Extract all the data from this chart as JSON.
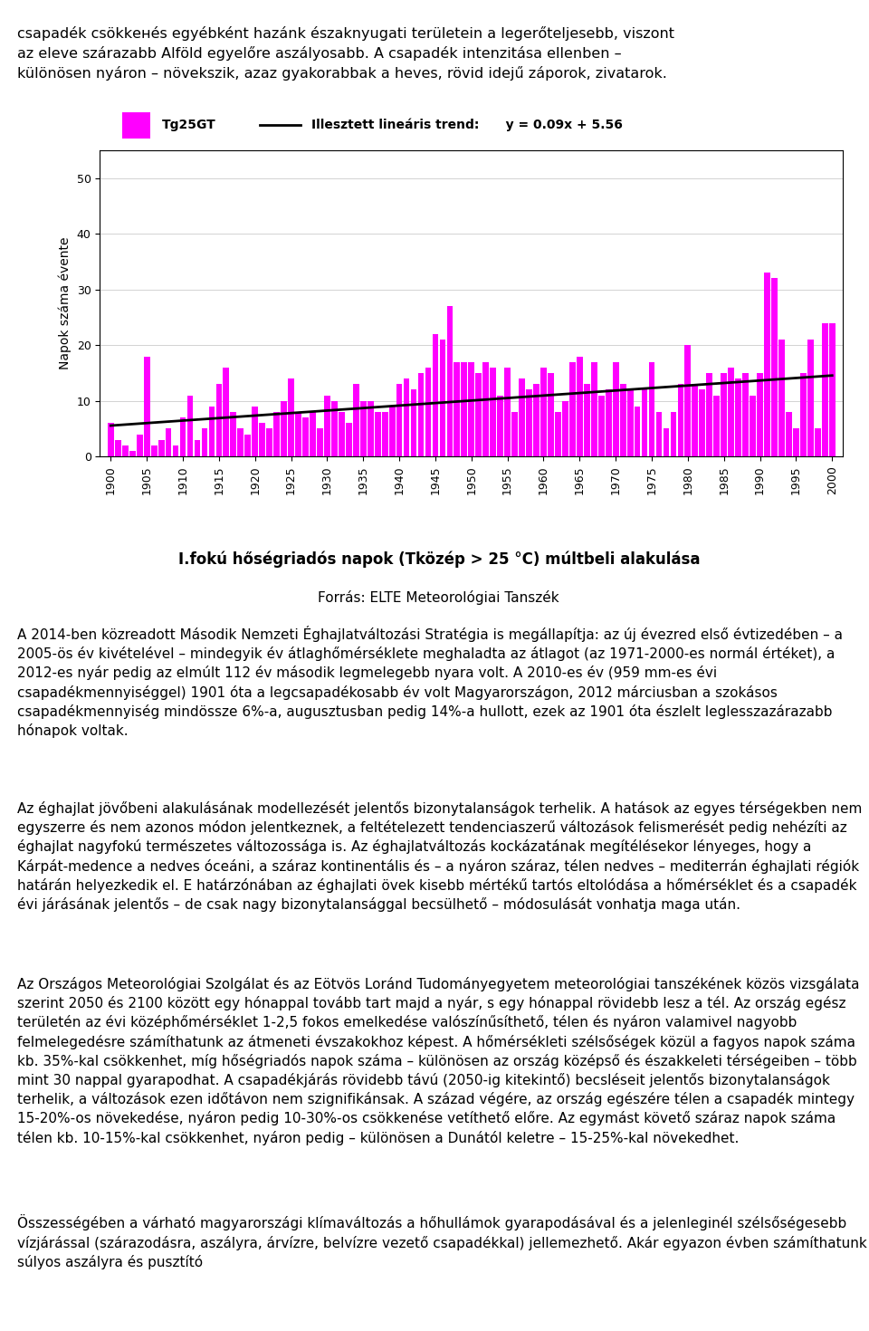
{
  "top_text_line1": "csapadék csökkенés egyébként hazánk északnyugati területein a legerőteljesebb, viszont",
  "top_text_line2": "az eleve szárazabb Alföld egyelőre aszályosabb. A csapadék intenzitása ellenben –",
  "top_text_line3": "különösen nyáron – növekszik, azaz gyakorabbak a heves, rövid idejű záporok, zivatarok.",
  "chart_title": "I.fokú hőségriadós napok (Tközép > 25 °C) múltbeli alakulása",
  "source_text": "Forrás: ELTE Meteorológiai Tanszék",
  "ylabel": "Napok száma évente",
  "legend_bar": "Tg25GT",
  "legend_line": "Illesztett lineáris trend:",
  "trend_eq": "y = 0.09x + 5.56",
  "bar_color": "#FF00FF",
  "trend_color": "#000000",
  "years": [
    1900,
    1901,
    1902,
    1903,
    1904,
    1905,
    1906,
    1907,
    1908,
    1909,
    1910,
    1911,
    1912,
    1913,
    1914,
    1915,
    1916,
    1917,
    1918,
    1919,
    1920,
    1921,
    1922,
    1923,
    1924,
    1925,
    1926,
    1927,
    1928,
    1929,
    1930,
    1931,
    1932,
    1933,
    1934,
    1935,
    1936,
    1937,
    1938,
    1939,
    1940,
    1941,
    1942,
    1943,
    1944,
    1945,
    1946,
    1947,
    1948,
    1949,
    1950,
    1951,
    1952,
    1953,
    1954,
    1955,
    1956,
    1957,
    1958,
    1959,
    1960,
    1961,
    1962,
    1963,
    1964,
    1965,
    1966,
    1967,
    1968,
    1969,
    1970,
    1971,
    1972,
    1973,
    1974,
    1975,
    1976,
    1977,
    1978,
    1979,
    1980,
    1981,
    1982,
    1983,
    1984,
    1985,
    1986,
    1987,
    1988,
    1989,
    1990,
    1991,
    1992,
    1993,
    1994,
    1995,
    1996,
    1997,
    1998,
    1999,
    2000
  ],
  "values": [
    6,
    3,
    2,
    1,
    4,
    18,
    2,
    3,
    5,
    2,
    7,
    11,
    3,
    5,
    9,
    13,
    16,
    8,
    5,
    4,
    9,
    6,
    5,
    8,
    10,
    14,
    8,
    7,
    8,
    5,
    11,
    10,
    8,
    6,
    13,
    10,
    10,
    8,
    8,
    9,
    13,
    14,
    12,
    15,
    16,
    22,
    21,
    27,
    17,
    17,
    17,
    15,
    17,
    16,
    11,
    16,
    8,
    14,
    12,
    13,
    16,
    15,
    8,
    10,
    17,
    18,
    13,
    17,
    11,
    12,
    17,
    13,
    12,
    9,
    12,
    17,
    8,
    5,
    8,
    13,
    20,
    13,
    12,
    15,
    11,
    15,
    16,
    14,
    15,
    11,
    15,
    33,
    32,
    21,
    8,
    5,
    15,
    21,
    5,
    24,
    24
  ],
  "yticks": [
    0,
    10,
    20,
    30,
    40,
    50
  ],
  "xticks": [
    1900,
    1905,
    1910,
    1915,
    1920,
    1925,
    1930,
    1935,
    1940,
    1945,
    1950,
    1955,
    1960,
    1965,
    1970,
    1975,
    1980,
    1985,
    1990,
    1995,
    2000
  ],
  "ylim": [
    0,
    55
  ],
  "xlim": [
    1898.5,
    2001.5
  ],
  "para1": "A 2014-ben közreadott Második Nemzeti Éghajlatváltozási Stratégia is megállapítja: az új évezred első évtizedében – a 2005-ös év kivételével – mindegyik év átlaghőmérséklete meghaladta az átlagot (az 1971-2000-es normál értéket), a 2012-es nyár pedig az elmúlt 112 év második legmelegebb nyara volt. A 2010-es év (959 mm-es évi csapadékmennyiséggel) 1901 óta a legcsapadékosabb év volt Magyarországon, 2012 márciusban a szokásos csapadékmennyiség mindössze 6%-a, augusztusban pedig 14%-a hullott, ezek az 1901 óta észlelt leglesszazárazabb hónapok voltak.",
  "para2": "Az éghajlat jövőbeni alakulásának modellezését jelentős bizonytalanságok terhelik. A hatások az egyes térségekben nem egyszerre és nem azonos módon jelentkeznek, a feltételezett tendenciaszerű változások felismerését pedig nehézíti az éghajlat nagyfokú természetes változossága is. Az éghajlatváltozás kockázatának megítélésekor lényeges, hogy a Kárpát-medence a nedves óceáni, a száraz kontinentális és – a nyáron száraz, télen nedves – mediterrán éghajlati régiók határán helyezkedik el. E határzónában az éghajlati övek kisebb mértékű tartós eltolódása a hőmérséklet és a csapadék évi járásának jelentős – de csak nagy bizonytalansággal becsülhető – módosulását vonhatja maga után.",
  "para3": "Az Országos Meteorológiai Szolgálat és az Eötvös Loránd Tudományegyetem meteorológiai tanszékének közös vizsgálata szerint 2050 és 2100 között egy hónappal tovább tart majd a nyár, s egy hónappal rövidebb lesz a tél. Az ország egész területén az évi középhőmérséklet 1-2,5 fokos emelkedése valószínűsíthető, télen és nyáron valamivel nagyobb felmelegedésre számíthatunk az átmeneti évszakokhoz képest. A hőmérsékleti szélsőségek közül a fagyos napok száma kb. 35%-kal csökkenhet, míg hőségriadós napok száma – különösen az ország középső és északkeleti térségeiben – több mint 30 nappal gyarapodhat. A csapadékjárás rövidebb távú (2050-ig kitekintő) becsléseit jelentős bizonytalanságok terhelik, a változások ezen időtávon nem szignifikánsak. A század végére, az ország egészére télen a csapadék mintegy 15-20%-os növekedése, nyáron pedig 10-30%-os csökkenése vetíthető előre. Az egymást követő száraz napok száma télen kb. 10-15%-kal csökkenhet, nyáron pedig – különösen a Dunától keletre – 15-25%-kal növekedhet.",
  "para4": "Összességében a várható magyarországi klímaváltozás a hőhullámok gyarapodásával és a jelenleginél szélsőségesebb vízjárással (szárazodásra, aszályra, árvízre, belvízre vezető csapadékkal) jellemezhető. Akár egyazon évben számíthatunk súlyos aszályra és pusztító"
}
